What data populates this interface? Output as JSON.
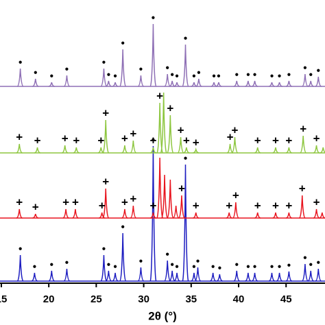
{
  "chart_data": {
    "type": "xrd",
    "xlabel": "2θ (°)",
    "xlim": [
      14.86,
      49.1
    ],
    "xticks": [
      15,
      20,
      25,
      30,
      35,
      40,
      45
    ],
    "ylim": [
      0,
      413
    ],
    "series": [
      {
        "color": "#1c1cc0",
        "baseline": 3,
        "marker": "●",
        "x": [
          17.0,
          18.5,
          20.3,
          21.9,
          25.8,
          26.3,
          27.0,
          27.8,
          29.7,
          31.0,
          32.5,
          33.0,
          33.5,
          34.4,
          35.3,
          35.7,
          37.3,
          38.0,
          39.8,
          41.0,
          41.7,
          43.5,
          44.3,
          45.3,
          47.0,
          47.6,
          48.4
        ],
        "values": [
          41,
          15,
          18,
          21,
          41,
          18,
          15,
          73,
          23,
          200,
          33,
          18,
          15,
          173,
          15,
          23,
          15,
          13,
          18,
          15,
          15,
          15,
          15,
          17,
          28,
          18,
          21
        ],
        "marker_x": [
          17.0,
          18.5,
          20.3,
          21.9,
          25.8,
          26.3,
          27.0,
          27.8,
          29.7,
          31.0,
          32.5,
          33.0,
          33.5,
          34.4,
          35.3,
          35.7,
          37.3,
          38.0,
          39.8,
          41.0,
          41.7,
          43.5,
          44.3,
          45.3,
          47.0,
          47.6,
          48.4
        ]
      },
      {
        "color": "#e8141e",
        "baseline": 95,
        "marker": "+",
        "x": [
          16.9,
          18.6,
          21.8,
          22.8,
          25.6,
          26.0,
          28.0,
          28.9,
          31.0,
          31.7,
          32.2,
          32.8,
          33.4,
          34.0,
          35.5,
          39.0,
          39.7,
          42.0,
          43.9,
          45.3,
          46.7,
          48.2,
          48.8
        ],
        "values": [
          108,
          101,
          108,
          108,
          103,
          138,
          108,
          113,
          103,
          183,
          158,
          151,
          113,
          128,
          103,
          103,
          118,
          103,
          103,
          103,
          128,
          108,
          103
        ],
        "marker_x": [
          16.9,
          18.6,
          21.8,
          22.8,
          25.6,
          26.0,
          28.0,
          28.9,
          31.0,
          34.0,
          35.5,
          39.0,
          39.7,
          42.0,
          43.9,
          45.3,
          46.7,
          48.2
        ]
      },
      {
        "color": "#8dc63f",
        "baseline": 190,
        "marker": "+",
        "x": [
          16.9,
          18.8,
          21.7,
          22.9,
          25.5,
          26.0,
          28.0,
          28.9,
          31.0,
          31.7,
          32.1,
          32.8,
          33.9,
          34.5,
          35.5,
          39.1,
          39.6,
          42.0,
          43.9,
          45.3,
          46.8,
          48.2,
          48.9
        ],
        "values": [
          203,
          198,
          201,
          198,
          198,
          238,
          201,
          208,
          198,
          263,
          278,
          245,
          213,
          198,
          195,
          203,
          213,
          198,
          198,
          198,
          215,
          201,
          198
        ],
        "marker_x": [
          16.9,
          18.8,
          21.7,
          22.9,
          25.5,
          26.0,
          28.0,
          28.9,
          31.0,
          31.7,
          32.8,
          33.9,
          34.5,
          35.5,
          39.1,
          39.6,
          42.0,
          43.9,
          45.3,
          46.8,
          48.2
        ]
      },
      {
        "color": "#8e6fb5",
        "baseline": 287,
        "marker": "●",
        "x": [
          17.0,
          18.6,
          20.3,
          21.9,
          25.8,
          26.3,
          27.0,
          27.8,
          29.7,
          31.0,
          32.5,
          33.0,
          33.5,
          34.4,
          35.3,
          35.8,
          37.4,
          37.9,
          39.8,
          41.0,
          41.7,
          43.5,
          44.3,
          45.3,
          47.0,
          47.6,
          48.4
        ],
        "values": [
          313,
          298,
          293,
          303,
          313,
          295,
          293,
          341,
          303,
          378,
          305,
          295,
          293,
          348,
          293,
          298,
          293,
          293,
          295,
          295,
          295,
          293,
          293,
          295,
          305,
          295,
          301
        ],
        "marker_x": [
          17.0,
          18.6,
          20.3,
          21.9,
          25.8,
          26.3,
          27.0,
          27.8,
          29.7,
          31.0,
          32.5,
          33.0,
          33.5,
          34.4,
          35.3,
          35.8,
          37.4,
          37.9,
          39.8,
          41.0,
          41.7,
          43.5,
          44.3,
          45.3,
          47.0,
          47.6,
          48.4
        ]
      }
    ]
  }
}
